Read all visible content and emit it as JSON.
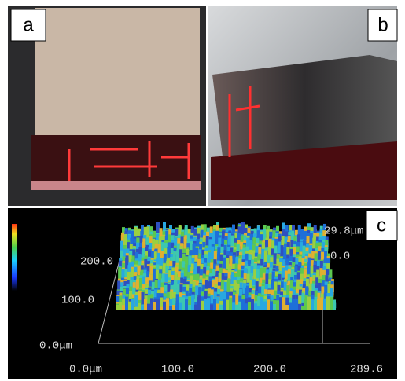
{
  "panels": [
    {
      "label": "a"
    },
    {
      "label": "b"
    },
    {
      "label": "c",
      "z_labels": [
        "29.8μm",
        "0.0"
      ],
      "y_labels": [
        "200.0",
        "100.0",
        "0.0μm"
      ],
      "x_labels": [
        "0.0μm",
        "100.0",
        "200.0",
        "289.6"
      ]
    }
  ]
}
